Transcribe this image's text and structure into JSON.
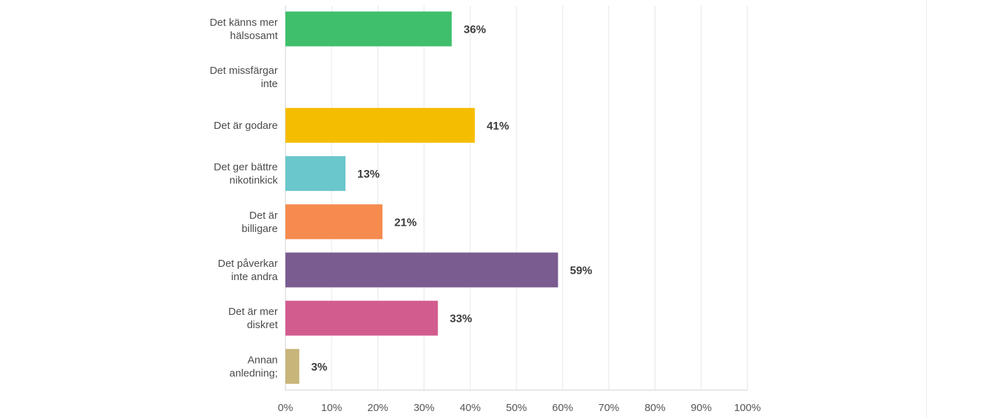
{
  "chart_data": {
    "type": "bar",
    "orientation": "horizontal",
    "categories": [
      [
        "Det känns mer",
        "hälsosamt"
      ],
      [
        "Det missfärgar",
        "inte"
      ],
      [
        "Det är godare"
      ],
      [
        "Det ger bättre",
        "nikotinkick"
      ],
      [
        "Det är",
        "billigare"
      ],
      [
        "Det påverkar",
        "inte andra"
      ],
      [
        "Det är mer",
        "diskret"
      ],
      [
        "Annan",
        "anledning;"
      ]
    ],
    "values": [
      36,
      0,
      41,
      13,
      21,
      59,
      33,
      3
    ],
    "value_labels": [
      "36%",
      "",
      "41%",
      "13%",
      "21%",
      "59%",
      "33%",
      "3%"
    ],
    "colors": [
      "#3fbf6b",
      "#ffffff",
      "#f5bd00",
      "#6ac7cc",
      "#f58b4e",
      "#7a5c90",
      "#d25c8e",
      "#c8b57a"
    ],
    "xlim": [
      0,
      100
    ],
    "x_ticks": [
      "0%",
      "10%",
      "20%",
      "30%",
      "40%",
      "50%",
      "60%",
      "70%",
      "80%",
      "90%",
      "100%"
    ],
    "grid": true,
    "title": "",
    "xlabel": "",
    "ylabel": ""
  }
}
